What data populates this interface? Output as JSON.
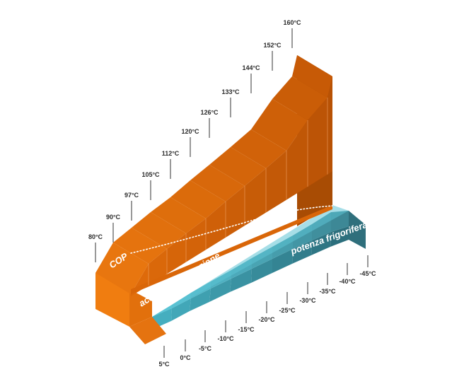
{
  "colors": {
    "orange_top": "#df6c0c",
    "orange_front": "#f07d10",
    "orange_side_light": "#cf6008",
    "orange_side_dark": "#a84c04",
    "teal_light": "#58c6d8",
    "teal_dark": "#2f7382",
    "teal_side": "#2f6f7c",
    "line": "#333333",
    "white": "#ffffff"
  },
  "labels": {
    "cop": "COP",
    "acqua": "acqua di generazione",
    "potenza": "potenza frigorifera"
  },
  "generation_ticks": [
    "80°C",
    "90°C",
    "97°C",
    "105°C",
    "112°C",
    "120°C",
    "126°C",
    "133°C",
    "144°C",
    "152°C",
    "160°C"
  ],
  "cooling_ticks": [
    "5°C",
    "0°C",
    "-5°C",
    "-10°C",
    "-15°C",
    "-20°C",
    "-25°C",
    "-30°C",
    "-35°C",
    "-40°C",
    "-45°C"
  ]
}
